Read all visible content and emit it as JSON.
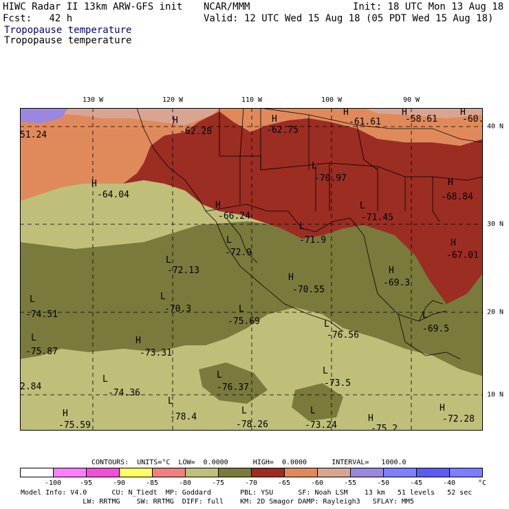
{
  "header": {
    "line1_left": "HIWC Radar II 13km ARW-GFS init",
    "line2_left": "Fcst:   42 h",
    "center": "NCAR/MMM",
    "init": "Init: 18 UTC Mon 13 Aug 18",
    "valid": "Valid: 12 UTC Wed 15 Aug 18 (05 PDT Wed 15 Aug 18)",
    "field_title_1": "Tropopause temperature",
    "field_title_2": "Tropopause temperature",
    "title1_color": "#000080"
  },
  "map": {
    "lon_ticks": [
      "130 W",
      "120 W",
      "110 W",
      "100 W",
      "90 W"
    ],
    "lat_ticks": [
      "40 N",
      "30 N",
      "20 N",
      "10 N"
    ],
    "highs": [
      {
        "label": "H",
        "value": "-62.28"
      },
      {
        "label": "H",
        "value": "-62.75"
      },
      {
        "label": "H",
        "value": "-61.61"
      },
      {
        "label": "H",
        "value": "-58.61"
      },
      {
        "label": "H",
        "value": "-60."
      },
      {
        "label": "H",
        "value": "-64.04"
      },
      {
        "label": "H",
        "value": "-68.84"
      },
      {
        "label": "H",
        "value": "-67.01"
      },
      {
        "label": "H",
        "value": "-69.3"
      },
      {
        "label": "H",
        "value": "-70.55"
      },
      {
        "label": "H",
        "value": "-73.31"
      },
      {
        "label": "H",
        "value": "-75.59"
      },
      {
        "label": "H",
        "value": "-72.28"
      },
      {
        "label": "H",
        "value": "-75.2"
      },
      {
        "label": "H",
        "value": "-66.24"
      }
    ],
    "lows": [
      {
        "label": "L",
        "value": "-70.97"
      },
      {
        "label": "L",
        "value": "-71.45"
      },
      {
        "label": "L",
        "value": "-71.9"
      },
      {
        "label": "L",
        "value": "-72.9"
      },
      {
        "label": "L",
        "value": "-72.13"
      },
      {
        "label": "L",
        "value": "-70.3"
      },
      {
        "label": "L",
        "value": "-75.69"
      },
      {
        "label": "L",
        "value": "-74.51"
      },
      {
        "label": "L",
        "value": "-75.87"
      },
      {
        "label": "L",
        "value": "-76.56"
      },
      {
        "label": "L",
        "value": "-74.36"
      },
      {
        "label": "L",
        "value": "-76.37"
      },
      {
        "label": "L",
        "value": "-73.5"
      },
      {
        "label": "L",
        "value": "-78.4"
      },
      {
        "label": "L",
        "value": "-78.26"
      },
      {
        "label": "L",
        "value": "-73.24"
      },
      {
        "label": "L",
        "value": "-69.5"
      }
    ],
    "edge_values": [
      "51.24",
      "2.84"
    ],
    "zone_colors": {
      "z_m55_m60": "#d8a593",
      "z_m60_m65": "#e08a5c",
      "z_m65_m70": "#9b2d23",
      "z_m70_m75": "#7a7a3c",
      "z_m75_m80": "#bfbf7a",
      "z_m50_m55": "#9b87e0"
    }
  },
  "contours_line": "CONTOURS:  UNITS=°C  LOW=  0.0000      HIGH=  0.0000      INTERVAL=   1000.0",
  "colorbar": {
    "colors": [
      "#ffffff",
      "#ff80ff",
      "#f050d8",
      "#ffff66",
      "#f08080",
      "#bfbf7a",
      "#7a7a3c",
      "#9b2d23",
      "#e08a5c",
      "#d8a593",
      "#9b87e0",
      "#8080ff",
      "#5c5cf0",
      "#7d7dff"
    ],
    "labels": [
      "-100",
      "-95",
      "-90",
      "-85",
      "-80",
      "-75",
      "-70",
      "-65",
      "-60",
      "-55",
      "-50",
      "-45",
      "-40"
    ],
    "unit": "°C"
  },
  "footer": {
    "line1": "Model Info: V4.0      CU: N_Tiedt  MP: Goddard       PBL: YSU      SF: Noah LSM    13 km   51 levels   52 sec",
    "line2": "               LW: RRTMG    SW: RRTMG  DIFF: full    KM: 2D Smagor DAMP: Rayleigh3   SFLAY: MM5"
  }
}
